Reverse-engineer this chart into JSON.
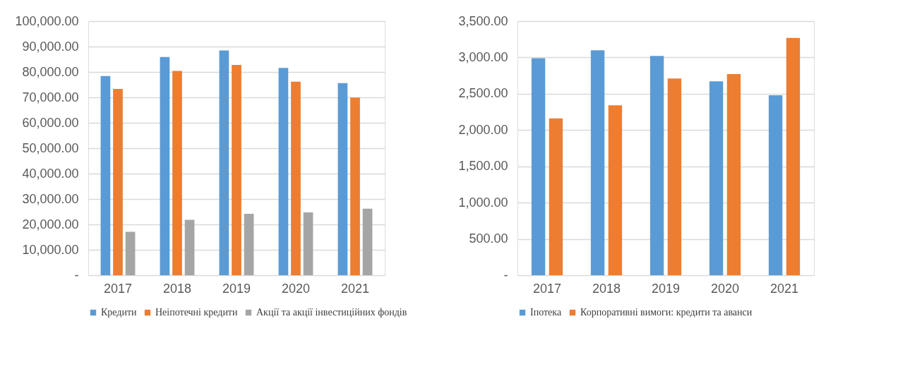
{
  "chart_data": [
    {
      "type": "bar",
      "categories": [
        "2017",
        "2018",
        "2019",
        "2020",
        "2021"
      ],
      "series": [
        {
          "name": "Кредити",
          "color": "#5b9bd5",
          "values": [
            78400,
            85900,
            88500,
            81600,
            75600
          ]
        },
        {
          "name": "Неіпотечні кредити",
          "color": "#ed7d31",
          "values": [
            73300,
            80400,
            82800,
            76200,
            69900
          ]
        },
        {
          "name": "Акції та акції інвестиційних фондів",
          "color": "#a5a5a5",
          "values": [
            17100,
            21800,
            24200,
            24700,
            26200
          ]
        }
      ],
      "ylim": [
        0,
        100000
      ],
      "yticks": [
        {
          "value": 0,
          "label": "-"
        },
        {
          "value": 10000,
          "label": "10,000.00"
        },
        {
          "value": 20000,
          "label": "20,000.00"
        },
        {
          "value": 30000,
          "label": "30,000.00"
        },
        {
          "value": 40000,
          "label": "40,000.00"
        },
        {
          "value": 50000,
          "label": "50,000.00"
        },
        {
          "value": 60000,
          "label": "60,000.00"
        },
        {
          "value": 70000,
          "label": "70,000.00"
        },
        {
          "value": 80000,
          "label": "80,000.00"
        },
        {
          "value": 90000,
          "label": "90,000.00"
        },
        {
          "value": 100000,
          "label": "100,000.00"
        }
      ],
      "grid": "y",
      "legend": "bottom"
    },
    {
      "type": "bar",
      "categories": [
        "2017",
        "2018",
        "2019",
        "2020",
        "2021"
      ],
      "series": [
        {
          "name": "Іпотека",
          "color": "#5b9bd5",
          "values": [
            2990,
            3100,
            3020,
            2670,
            2480
          ]
        },
        {
          "name": "Корпоративні вимоги: кредити та аванси",
          "color": "#ed7d31",
          "values": [
            2160,
            2340,
            2710,
            2770,
            3270
          ]
        }
      ],
      "ylim": [
        0,
        3500
      ],
      "yticks": [
        {
          "value": 0,
          "label": "-"
        },
        {
          "value": 500,
          "label": "500.00"
        },
        {
          "value": 1000,
          "label": "1,000.00"
        },
        {
          "value": 1500,
          "label": "1,500.00"
        },
        {
          "value": 2000,
          "label": "2,000.00"
        },
        {
          "value": 2500,
          "label": "2,500.00"
        },
        {
          "value": 3000,
          "label": "3,000.00"
        },
        {
          "value": 3500,
          "label": "3,500.00"
        }
      ],
      "grid": "y",
      "legend": "bottom"
    }
  ]
}
